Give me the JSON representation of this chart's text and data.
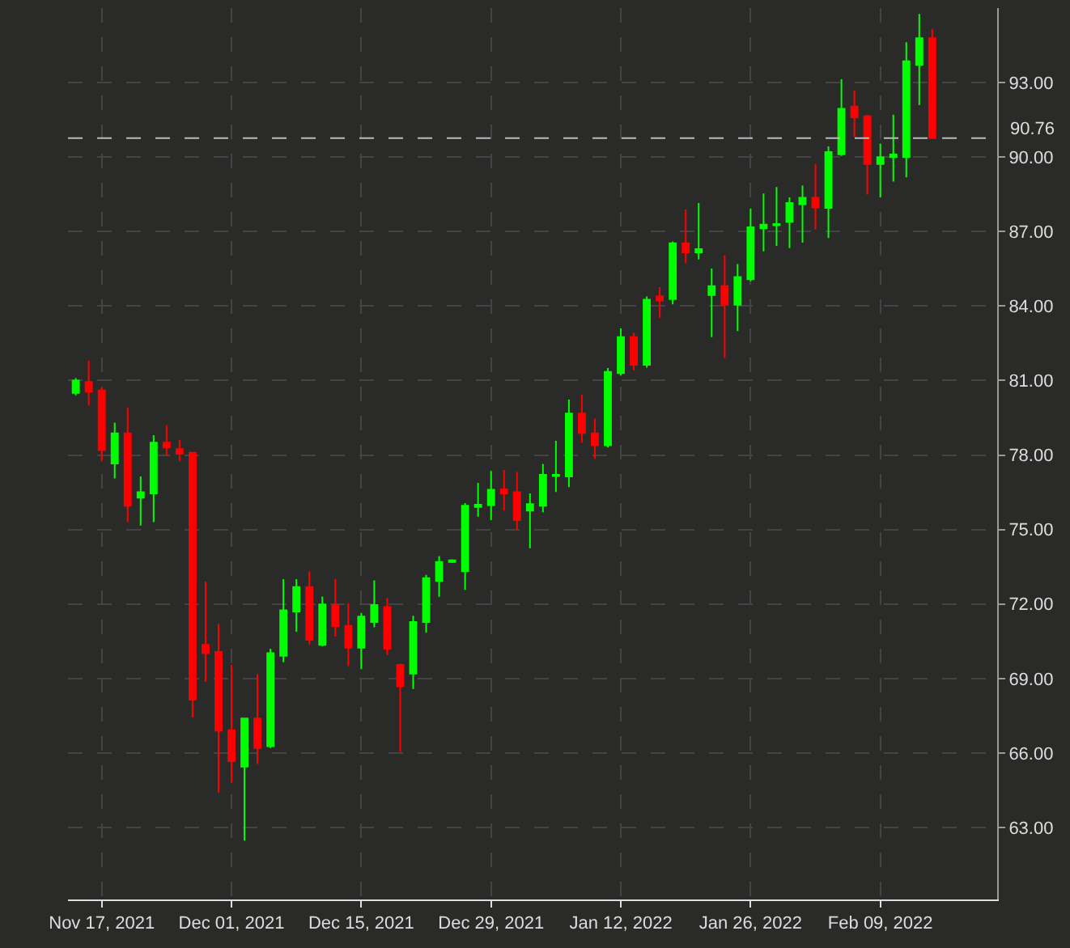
{
  "chart_data": {
    "type": "candlestick",
    "categories": [
      null,
      null,
      "Nov 17, 2021",
      null,
      null,
      null,
      null,
      null,
      null,
      null,
      null,
      null,
      "Dec 01, 2021",
      null,
      null,
      null,
      null,
      null,
      null,
      null,
      null,
      null,
      "Dec 15, 2021",
      null,
      null,
      null,
      null,
      null,
      null,
      null,
      null,
      null,
      "Dec 29, 2021",
      null,
      null,
      null,
      null,
      null,
      null,
      null,
      null,
      null,
      "Jan 12, 2022",
      null,
      null,
      null,
      null,
      null,
      null,
      null,
      null,
      null,
      "Jan 26, 2022",
      null,
      null,
      null,
      null,
      null,
      null,
      null,
      null,
      null,
      "Feb 09, 2022",
      null,
      null,
      null,
      null
    ],
    "ohlc": [
      [
        80.5,
        81.1,
        80.4,
        81.0
      ],
      [
        80.94,
        81.8,
        80.0,
        80.55
      ],
      [
        80.6,
        80.7,
        77.75,
        78.2
      ],
      [
        77.66,
        79.3,
        77.06,
        78.87
      ],
      [
        78.87,
        79.9,
        75.3,
        75.96
      ],
      [
        76.28,
        77.14,
        75.16,
        76.5
      ],
      [
        76.45,
        78.8,
        75.3,
        78.5
      ],
      [
        78.5,
        79.2,
        77.96,
        78.3
      ],
      [
        78.24,
        78.6,
        77.75,
        78.05
      ],
      [
        78.09,
        78.1,
        67.43,
        68.15
      ],
      [
        70.35,
        72.9,
        68.86,
        70.02
      ],
      [
        70.07,
        71.2,
        64.4,
        66.9
      ],
      [
        66.92,
        69.55,
        64.8,
        65.67
      ],
      [
        65.45,
        67.4,
        62.47,
        67.39
      ],
      [
        67.39,
        69.18,
        65.56,
        66.2
      ],
      [
        66.27,
        70.2,
        66.2,
        70.02
      ],
      [
        69.91,
        73.0,
        69.65,
        71.75
      ],
      [
        71.7,
        73.0,
        70.88,
        72.68
      ],
      [
        72.68,
        73.32,
        70.37,
        70.56
      ],
      [
        70.35,
        72.3,
        70.3,
        71.98
      ],
      [
        71.96,
        73.0,
        70.69,
        71.1
      ],
      [
        71.12,
        72.03,
        69.5,
        70.24
      ],
      [
        70.24,
        71.64,
        69.38,
        71.49
      ],
      [
        71.27,
        72.95,
        71.06,
        71.96
      ],
      [
        71.88,
        72.24,
        69.94,
        70.2
      ],
      [
        69.55,
        69.6,
        66.05,
        68.69
      ],
      [
        69.2,
        71.53,
        68.58,
        71.27
      ],
      [
        71.27,
        73.17,
        70.84,
        73.04
      ],
      [
        72.93,
        73.93,
        72.29,
        73.69
      ],
      [
        73.69,
        73.8,
        73.65,
        73.76
      ],
      [
        73.32,
        76.06,
        72.57,
        75.96
      ],
      [
        75.91,
        76.88,
        75.52,
        76.0
      ],
      [
        75.98,
        77.36,
        75.38,
        76.6
      ],
      [
        76.62,
        77.4,
        75.76,
        76.45
      ],
      [
        76.5,
        77.32,
        74.99,
        75.38
      ],
      [
        75.76,
        76.45,
        74.25,
        76.02
      ],
      [
        75.96,
        77.64,
        75.7,
        77.2
      ],
      [
        77.15,
        78.57,
        76.51,
        77.2
      ],
      [
        77.14,
        80.23,
        76.71,
        79.67
      ],
      [
        79.67,
        80.44,
        78.5,
        78.89
      ],
      [
        78.87,
        79.47,
        77.85,
        78.39
      ],
      [
        78.39,
        81.5,
        78.3,
        81.35
      ],
      [
        81.3,
        83.1,
        81.2,
        82.75
      ],
      [
        82.75,
        82.92,
        81.41,
        81.63
      ],
      [
        81.63,
        84.39,
        81.52,
        84.26
      ],
      [
        84.39,
        84.76,
        83.53,
        84.22
      ],
      [
        84.28,
        86.6,
        84.07,
        86.53
      ],
      [
        86.53,
        87.89,
        85.73,
        86.16
      ],
      [
        86.16,
        88.15,
        85.88,
        86.29
      ],
      [
        84.44,
        85.51,
        82.75,
        84.8
      ],
      [
        84.8,
        86.05,
        81.91,
        84.05
      ],
      [
        84.05,
        85.69,
        82.99,
        85.17
      ],
      [
        85.08,
        87.93,
        85.0,
        87.17
      ],
      [
        87.13,
        88.53,
        86.2,
        87.28
      ],
      [
        87.25,
        88.79,
        86.42,
        87.3
      ],
      [
        87.39,
        88.38,
        86.33,
        88.15
      ],
      [
        88.1,
        88.86,
        86.55,
        88.36
      ],
      [
        88.36,
        89.72,
        87.09,
        87.97
      ],
      [
        87.95,
        90.43,
        86.74,
        90.2
      ],
      [
        90.11,
        93.13,
        90.05,
        91.94
      ],
      [
        92.03,
        92.68,
        90.8,
        91.6
      ],
      [
        91.64,
        91.7,
        88.49,
        89.72
      ],
      [
        89.72,
        90.54,
        88.38,
        90.0
      ],
      [
        90.0,
        91.71,
        89.01,
        90.1
      ],
      [
        90.0,
        94.62,
        89.18,
        93.86
      ],
      [
        93.71,
        95.76,
        92.09,
        94.79
      ],
      [
        94.79,
        95.16,
        90.76,
        90.76
      ]
    ],
    "colors": [
      "#00ff00",
      "#ff0000",
      "#ff0000",
      "#00ff00",
      "#ff0000",
      "#00ff00",
      "#00ff00",
      "#ff0000",
      "#ff0000",
      "#ff0000",
      "#ff0000",
      "#ff0000",
      "#ff0000",
      "#00ff00",
      "#ff0000",
      "#00ff00",
      "#00ff00",
      "#00ff00",
      "#ff0000",
      "#00ff00",
      "#ff0000",
      "#ff0000",
      "#00ff00",
      "#00ff00",
      "#ff0000",
      "#ff0000",
      "#00ff00",
      "#00ff00",
      "#00ff00",
      "#00ff00",
      "#00ff00",
      "#00ff00",
      "#00ff00",
      "#ff0000",
      "#ff0000",
      "#00ff00",
      "#00ff00",
      "#00ff00",
      "#00ff00",
      "#ff0000",
      "#ff0000",
      "#00ff00",
      "#00ff00",
      "#ff0000",
      "#00ff00",
      "#ff0000",
      "#00ff00",
      "#ff0000",
      "#00ff00",
      "#00ff00",
      "#ff0000",
      "#00ff00",
      "#00ff00",
      "#00ff00",
      "#00ff00",
      "#00ff00",
      "#00ff00",
      "#ff0000",
      "#00ff00",
      "#00ff00",
      "#ff0000",
      "#ff0000",
      "#00ff00",
      "#00ff00",
      "#00ff00",
      "#00ff00",
      "#ff0000"
    ],
    "ylim": [
      60.1,
      96.0
    ],
    "yticks": [
      {
        "value": 63,
        "label": "63.00"
      },
      {
        "value": 66,
        "label": "66.00"
      },
      {
        "value": 69,
        "label": "69.00"
      },
      {
        "value": 72,
        "label": "72.00"
      },
      {
        "value": 75,
        "label": "75.00"
      },
      {
        "value": 78,
        "label": "78.00"
      },
      {
        "value": 81,
        "label": "81.00"
      },
      {
        "value": 84,
        "label": "84.00"
      },
      {
        "value": 87,
        "label": "87.00"
      },
      {
        "value": 90,
        "label": "90.00"
      },
      {
        "value": 93,
        "label": "93.00"
      }
    ],
    "ref_lines": [
      {
        "axis": "y",
        "value": 90.76,
        "label": "90.76",
        "color": "#bbbbbb",
        "line_style": "dashed"
      }
    ],
    "grid": true,
    "legend": false
  }
}
